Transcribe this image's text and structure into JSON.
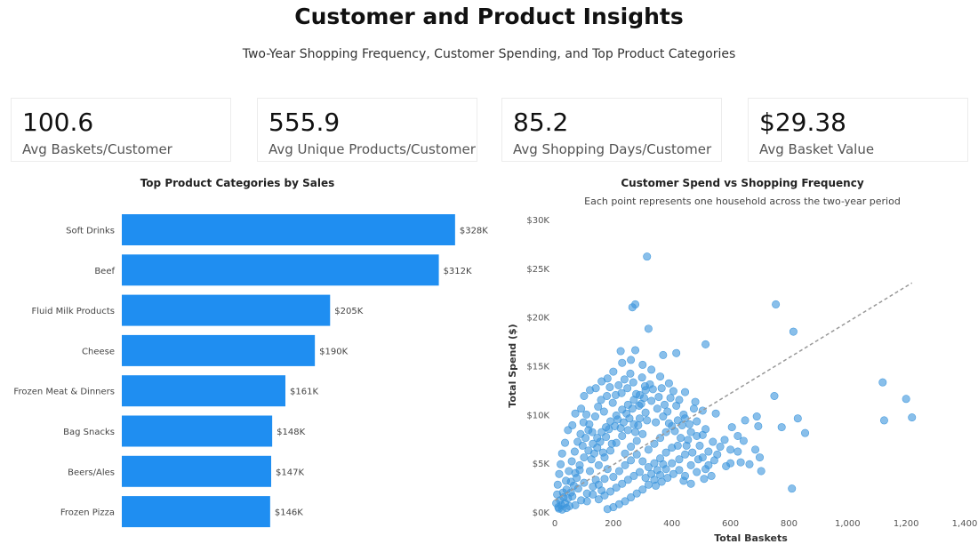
{
  "header": {
    "title": "Customer and Product Insights",
    "subtitle": "Two-Year Shopping Frequency, Customer Spending, and Top Product Categories"
  },
  "kpis": [
    {
      "value": "100.6",
      "label": "Avg Baskets/Customer"
    },
    {
      "value": "555.9",
      "label": "Avg Unique Products/Customer"
    },
    {
      "value": "85.2",
      "label": "Avg Shopping Days/Customer"
    },
    {
      "value": "$29.38",
      "label": "Avg Basket Value"
    }
  ],
  "colors": {
    "bar": "#1f8ef1",
    "point": "#3b95dc",
    "trend": "#999999"
  },
  "chart_data": [
    {
      "type": "bar",
      "orientation": "horizontal",
      "title": "Top Product Categories by Sales",
      "categories": [
        "Soft Drinks",
        "Beef",
        "Fluid Milk Products",
        "Cheese",
        "Frozen Meat & Dinners",
        "Bag Snacks",
        "Beers/Ales",
        "Frozen Pizza"
      ],
      "values": [
        328,
        312,
        205,
        190,
        161,
        148,
        147,
        146
      ],
      "data_labels": [
        "$328K",
        "$312K",
        "$205K",
        "$190K",
        "$161K",
        "$148K",
        "$147K",
        "$146K"
      ],
      "xlim": [
        0,
        350
      ]
    },
    {
      "type": "scatter",
      "title": "Customer Spend vs Shopping Frequency",
      "subtitle": "Each point represents one household across the two-year period",
      "xlabel": "Total Baskets",
      "ylabel": "Total Spend ($)",
      "xlim": [
        0,
        1400
      ],
      "ylim": [
        0,
        30000
      ],
      "xticks": [
        0,
        200,
        400,
        600,
        800,
        1000,
        1200,
        1400
      ],
      "xtick_labels": [
        "0",
        "200",
        "400",
        "600",
        "800",
        "1,000",
        "1,200",
        "1,400"
      ],
      "yticks": [
        0,
        5000,
        10000,
        15000,
        20000,
        25000,
        30000
      ],
      "ytick_labels": [
        "$0K",
        "$5K",
        "$10K",
        "$15K",
        "$20K",
        "$25K",
        "$30K"
      ],
      "trend": {
        "x": [
          0,
          1220
        ],
        "y": [
          1200,
          23500
        ]
      },
      "points": [
        [
          315,
          26200
        ],
        [
          755,
          21300
        ],
        [
          275,
          21300
        ],
        [
          265,
          21000
        ],
        [
          320,
          18800
        ],
        [
          815,
          18500
        ],
        [
          515,
          17200
        ],
        [
          415,
          16300
        ],
        [
          275,
          16600
        ],
        [
          370,
          16100
        ],
        [
          225,
          16500
        ],
        [
          1120,
          13300
        ],
        [
          1200,
          11600
        ],
        [
          750,
          11900
        ],
        [
          1220,
          9700
        ],
        [
          1125,
          9400
        ],
        [
          830,
          9600
        ],
        [
          690,
          9800
        ],
        [
          695,
          8800
        ],
        [
          775,
          8700
        ],
        [
          855,
          8100
        ],
        [
          625,
          7800
        ],
        [
          600,
          6400
        ],
        [
          485,
          7800
        ],
        [
          420,
          6800
        ],
        [
          555,
          5900
        ],
        [
          635,
          5100
        ],
        [
          705,
          4200
        ],
        [
          810,
          2400
        ],
        [
          535,
          3700
        ],
        [
          465,
          2900
        ],
        [
          440,
          3200
        ],
        [
          510,
          3400
        ],
        [
          515,
          4400
        ],
        [
          700,
          5600
        ],
        [
          600,
          5000
        ],
        [
          580,
          7400
        ],
        [
          540,
          7200
        ],
        [
          650,
          9400
        ],
        [
          550,
          10100
        ],
        [
          505,
          10400
        ],
        [
          480,
          11300
        ],
        [
          445,
          12300
        ],
        [
          390,
          13200
        ],
        [
          360,
          13900
        ],
        [
          330,
          14600
        ],
        [
          300,
          15100
        ],
        [
          260,
          15600
        ],
        [
          230,
          15300
        ],
        [
          200,
          14400
        ],
        [
          180,
          13700
        ],
        [
          160,
          13400
        ],
        [
          140,
          12700
        ],
        [
          120,
          12500
        ],
        [
          100,
          11900
        ],
        [
          90,
          10600
        ],
        [
          70,
          10100
        ],
        [
          60,
          8900
        ],
        [
          45,
          8400
        ],
        [
          35,
          7100
        ],
        [
          25,
          6000
        ],
        [
          20,
          4900
        ],
        [
          15,
          3900
        ],
        [
          10,
          2800
        ],
        [
          8,
          1800
        ],
        [
          5,
          900
        ],
        [
          12,
          500
        ],
        [
          30,
          1500
        ],
        [
          40,
          2300
        ],
        [
          55,
          3100
        ],
        [
          70,
          4000
        ],
        [
          85,
          4800
        ],
        [
          100,
          5600
        ],
        [
          115,
          6300
        ],
        [
          130,
          7000
        ],
        [
          145,
          7600
        ],
        [
          160,
          8200
        ],
        [
          175,
          8700
        ],
        [
          190,
          9300
        ],
        [
          210,
          9900
        ],
        [
          230,
          10500
        ],
        [
          250,
          11000
        ],
        [
          270,
          11500
        ],
        [
          290,
          12000
        ],
        [
          310,
          12500
        ],
        [
          330,
          11400
        ],
        [
          350,
          10600
        ],
        [
          370,
          9800
        ],
        [
          390,
          9100
        ],
        [
          410,
          8300
        ],
        [
          430,
          7600
        ],
        [
          450,
          6800
        ],
        [
          470,
          6100
        ],
        [
          490,
          5400
        ],
        [
          400,
          5000
        ],
        [
          380,
          4400
        ],
        [
          360,
          3800
        ],
        [
          340,
          3300
        ],
        [
          320,
          2800
        ],
        [
          300,
          2300
        ],
        [
          280,
          1900
        ],
        [
          260,
          1500
        ],
        [
          240,
          1100
        ],
        [
          220,
          800
        ],
        [
          200,
          500
        ],
        [
          180,
          300
        ],
        [
          160,
          2200
        ],
        [
          140,
          3300
        ],
        [
          120,
          4200
        ],
        [
          100,
          3000
        ],
        [
          80,
          2400
        ],
        [
          60,
          1600
        ],
        [
          50,
          600
        ],
        [
          90,
          1200
        ],
        [
          110,
          1900
        ],
        [
          130,
          2600
        ],
        [
          150,
          4800
        ],
        [
          170,
          5600
        ],
        [
          190,
          6300
        ],
        [
          210,
          7100
        ],
        [
          230,
          7800
        ],
        [
          250,
          8400
        ],
        [
          270,
          9000
        ],
        [
          290,
          9600
        ],
        [
          310,
          10200
        ],
        [
          240,
          6000
        ],
        [
          260,
          6700
        ],
        [
          280,
          7300
        ],
        [
          300,
          8000
        ],
        [
          320,
          6400
        ],
        [
          340,
          7000
        ],
        [
          360,
          7600
        ],
        [
          380,
          8200
        ],
        [
          400,
          8800
        ],
        [
          420,
          9400
        ],
        [
          440,
          10000
        ],
        [
          460,
          9000
        ],
        [
          200,
          3600
        ],
        [
          220,
          4200
        ],
        [
          240,
          4800
        ],
        [
          260,
          5300
        ],
        [
          280,
          5900
        ],
        [
          300,
          5200
        ],
        [
          320,
          4600
        ],
        [
          340,
          5000
        ],
        [
          360,
          5500
        ],
        [
          380,
          6100
        ],
        [
          400,
          6600
        ],
        [
          180,
          4400
        ],
        [
          170,
          3400
        ],
        [
          150,
          2800
        ],
        [
          130,
          1800
        ],
        [
          110,
          1100
        ],
        [
          70,
          700
        ],
        [
          40,
          400
        ],
        [
          25,
          250
        ],
        [
          18,
          1200
        ],
        [
          28,
          2000
        ],
        [
          38,
          3200
        ],
        [
          48,
          4200
        ],
        [
          58,
          5200
        ],
        [
          68,
          6200
        ],
        [
          78,
          7200
        ],
        [
          88,
          8000
        ],
        [
          98,
          9200
        ],
        [
          108,
          10000
        ],
        [
          118,
          9000
        ],
        [
          128,
          8200
        ],
        [
          138,
          9800
        ],
        [
          148,
          10800
        ],
        [
          158,
          11500
        ],
        [
          168,
          10300
        ],
        [
          178,
          11900
        ],
        [
          188,
          12800
        ],
        [
          198,
          11200
        ],
        [
          208,
          12000
        ],
        [
          218,
          13000
        ],
        [
          228,
          12200
        ],
        [
          238,
          13600
        ],
        [
          248,
          12700
        ],
        [
          258,
          14200
        ],
        [
          268,
          13300
        ],
        [
          278,
          12100
        ],
        [
          288,
          10900
        ],
        [
          298,
          13800
        ],
        [
          308,
          12900
        ],
        [
          95,
          6800
        ],
        [
          105,
          7600
        ],
        [
          115,
          8400
        ],
        [
          125,
          5400
        ],
        [
          135,
          6000
        ],
        [
          145,
          6600
        ],
        [
          155,
          7200
        ],
        [
          165,
          6100
        ],
        [
          175,
          7700
        ],
        [
          185,
          8500
        ],
        [
          195,
          7000
        ],
        [
          205,
          8800
        ],
        [
          215,
          9500
        ],
        [
          225,
          8600
        ],
        [
          235,
          9200
        ],
        [
          245,
          10100
        ],
        [
          255,
          9600
        ],
        [
          265,
          10600
        ],
        [
          275,
          8200
        ],
        [
          285,
          8900
        ],
        [
          295,
          11100
        ],
        [
          305,
          11700
        ],
        [
          315,
          9400
        ],
        [
          325,
          13100
        ],
        [
          335,
          12600
        ],
        [
          345,
          9200
        ],
        [
          355,
          11800
        ],
        [
          365,
          12700
        ],
        [
          375,
          11000
        ],
        [
          385,
          10300
        ],
        [
          395,
          11700
        ],
        [
          405,
          12400
        ],
        [
          415,
          10900
        ],
        [
          425,
          11500
        ],
        [
          435,
          8900
        ],
        [
          445,
          9600
        ],
        [
          455,
          7400
        ],
        [
          465,
          8200
        ],
        [
          475,
          10600
        ],
        [
          485,
          9300
        ],
        [
          495,
          6800
        ],
        [
          505,
          7900
        ],
        [
          515,
          8500
        ],
        [
          525,
          6200
        ],
        [
          545,
          5300
        ],
        [
          565,
          6700
        ],
        [
          585,
          4700
        ],
        [
          605,
          8700
        ],
        [
          625,
          6200
        ],
        [
          645,
          7300
        ],
        [
          665,
          4900
        ],
        [
          685,
          6400
        ],
        [
          425,
          4300
        ],
        [
          445,
          3700
        ],
        [
          465,
          4800
        ],
        [
          485,
          4100
        ],
        [
          505,
          5600
        ],
        [
          525,
          4800
        ],
        [
          345,
          2700
        ],
        [
          365,
          3100
        ],
        [
          385,
          3500
        ],
        [
          405,
          3900
        ],
        [
          425,
          5400
        ],
        [
          445,
          5900
        ],
        [
          75,
          3500
        ],
        [
          85,
          4300
        ],
        [
          65,
          2700
        ],
        [
          55,
          2000
        ],
        [
          45,
          1400
        ],
        [
          35,
          900
        ],
        [
          22,
          700
        ],
        [
          14,
          350
        ],
        [
          150,
          1300
        ],
        [
          170,
          1700
        ],
        [
          190,
          2100
        ],
        [
          210,
          2500
        ],
        [
          230,
          2900
        ],
        [
          250,
          3300
        ],
        [
          270,
          3700
        ],
        [
          290,
          4100
        ],
        [
          310,
          3500
        ],
        [
          330,
          3900
        ],
        [
          350,
          4300
        ],
        [
          370,
          4900
        ]
      ]
    }
  ]
}
